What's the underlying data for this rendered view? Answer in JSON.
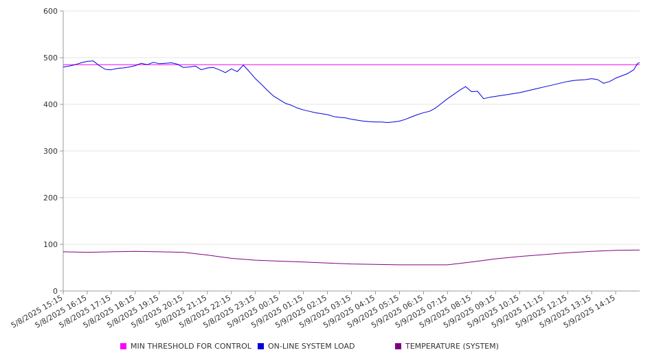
{
  "chart_data": {
    "type": "line",
    "title": "",
    "xlabel": "",
    "ylabel": "",
    "ylim": [
      0,
      600
    ],
    "yticks": [
      0,
      100,
      200,
      300,
      400,
      500,
      600
    ],
    "grid": "horizontal",
    "legend_position": "bottom",
    "x_tick_labels": [
      "5/8/2025 15:15",
      "5/8/2025 16:15",
      "5/8/2025 17:15",
      "5/8/2025 18:15",
      "5/8/2025 19:15",
      "5/8/2025 20:15",
      "5/8/2025 21:15",
      "5/8/2025 22:15",
      "5/8/2025 23:15",
      "5/9/2025 00:15",
      "5/9/2025 01:15",
      "5/9/2025 02:15",
      "5/9/2025 03:15",
      "5/9/2025 04:15",
      "5/9/2025 05:15",
      "5/9/2025 06:15",
      "5/9/2025 07:15",
      "5/9/2025 08:15",
      "5/9/2025 09:15",
      "5/9/2025 10:15",
      "5/9/2025 11:15",
      "5/9/2025 12:15",
      "5/9/2025 13:15",
      "5/9/2025 14:15"
    ],
    "x_start": "5/8/2025 15:15",
    "x_end": "5/9/2025 15:15",
    "series": [
      {
        "name": "MIN THRESHOLD FOR CONTROL",
        "color": "#ff00ff",
        "points": [
          [
            "5/8/2025 15:15",
            485
          ],
          [
            "5/9/2025 15:15",
            485
          ]
        ]
      },
      {
        "name": "ON-LINE SYSTEM LOAD",
        "color": "#0000dd",
        "points": [
          [
            "5/8/2025 15:15",
            480
          ],
          [
            "5/8/2025 15:30",
            482
          ],
          [
            "5/8/2025 15:45",
            485
          ],
          [
            "5/8/2025 16:00",
            489
          ],
          [
            "5/8/2025 16:15",
            492
          ],
          [
            "5/8/2025 16:30",
            493
          ],
          [
            "5/8/2025 16:45",
            483
          ],
          [
            "5/8/2025 17:00",
            475
          ],
          [
            "5/8/2025 17:15",
            474
          ],
          [
            "5/8/2025 17:30",
            477
          ],
          [
            "5/8/2025 17:45",
            478
          ],
          [
            "5/8/2025 18:00",
            480
          ],
          [
            "5/8/2025 18:15",
            483
          ],
          [
            "5/8/2025 18:30",
            488
          ],
          [
            "5/8/2025 18:45",
            485
          ],
          [
            "5/8/2025 19:00",
            490
          ],
          [
            "5/8/2025 19:15",
            487
          ],
          [
            "5/8/2025 19:30",
            488
          ],
          [
            "5/8/2025 19:45",
            489
          ],
          [
            "5/8/2025 20:00",
            486
          ],
          [
            "5/8/2025 20:15",
            479
          ],
          [
            "5/8/2025 20:30",
            480
          ],
          [
            "5/8/2025 20:45",
            482
          ],
          [
            "5/8/2025 21:00",
            474
          ],
          [
            "5/8/2025 21:15",
            478
          ],
          [
            "5/8/2025 21:30",
            479
          ],
          [
            "5/8/2025 21:45",
            474
          ],
          [
            "5/8/2025 22:00",
            468
          ],
          [
            "5/8/2025 22:15",
            476
          ],
          [
            "5/8/2025 22:30",
            470
          ],
          [
            "5/8/2025 22:45",
            484
          ],
          [
            "5/8/2025 23:00",
            470
          ],
          [
            "5/8/2025 23:15",
            455
          ],
          [
            "5/8/2025 23:30",
            443
          ],
          [
            "5/8/2025 23:45",
            430
          ],
          [
            "5/9/2025 00:00",
            418
          ],
          [
            "5/9/2025 00:15",
            410
          ],
          [
            "5/9/2025 00:30",
            402
          ],
          [
            "5/9/2025 00:45",
            398
          ],
          [
            "5/9/2025 01:00",
            392
          ],
          [
            "5/9/2025 01:15",
            388
          ],
          [
            "5/9/2025 01:30",
            385
          ],
          [
            "5/9/2025 01:45",
            382
          ],
          [
            "5/9/2025 02:00",
            380
          ],
          [
            "5/9/2025 02:15",
            378
          ],
          [
            "5/9/2025 02:30",
            374
          ],
          [
            "5/9/2025 02:45",
            372
          ],
          [
            "5/9/2025 03:00",
            371
          ],
          [
            "5/9/2025 03:15",
            368
          ],
          [
            "5/9/2025 03:30",
            366
          ],
          [
            "5/9/2025 03:45",
            364
          ],
          [
            "5/9/2025 04:00",
            363
          ],
          [
            "5/9/2025 04:15",
            362
          ],
          [
            "5/9/2025 04:30",
            362
          ],
          [
            "5/9/2025 04:45",
            361
          ],
          [
            "5/9/2025 05:00",
            362
          ],
          [
            "5/9/2025 05:15",
            364
          ],
          [
            "5/9/2025 05:30",
            368
          ],
          [
            "5/9/2025 05:45",
            373
          ],
          [
            "5/9/2025 06:00",
            378
          ],
          [
            "5/9/2025 06:15",
            382
          ],
          [
            "5/9/2025 06:30",
            385
          ],
          [
            "5/9/2025 06:45",
            392
          ],
          [
            "5/9/2025 07:00",
            402
          ],
          [
            "5/9/2025 07:15",
            412
          ],
          [
            "5/9/2025 07:30",
            421
          ],
          [
            "5/9/2025 07:45",
            430
          ],
          [
            "5/9/2025 08:00",
            438
          ],
          [
            "5/9/2025 08:15",
            427
          ],
          [
            "5/9/2025 08:30",
            428
          ],
          [
            "5/9/2025 08:45",
            412
          ],
          [
            "5/9/2025 09:00",
            415
          ],
          [
            "5/9/2025 09:15",
            417
          ],
          [
            "5/9/2025 09:30",
            419
          ],
          [
            "5/9/2025 09:45",
            421
          ],
          [
            "5/9/2025 10:00",
            423
          ],
          [
            "5/9/2025 10:15",
            425
          ],
          [
            "5/9/2025 10:30",
            428
          ],
          [
            "5/9/2025 10:45",
            431
          ],
          [
            "5/9/2025 11:00",
            434
          ],
          [
            "5/9/2025 11:15",
            437
          ],
          [
            "5/9/2025 11:30",
            440
          ],
          [
            "5/9/2025 11:45",
            443
          ],
          [
            "5/9/2025 12:00",
            446
          ],
          [
            "5/9/2025 12:15",
            449
          ],
          [
            "5/9/2025 12:30",
            451
          ],
          [
            "5/9/2025 12:45",
            452
          ],
          [
            "5/9/2025 13:00",
            453
          ],
          [
            "5/9/2025 13:15",
            455
          ],
          [
            "5/9/2025 13:30",
            453
          ],
          [
            "5/9/2025 13:45",
            445
          ],
          [
            "5/9/2025 14:00",
            449
          ],
          [
            "5/9/2025 14:15",
            456
          ],
          [
            "5/9/2025 14:30",
            461
          ],
          [
            "5/9/2025 14:45",
            466
          ],
          [
            "5/9/2025 15:00",
            474
          ],
          [
            "5/9/2025 15:05",
            481
          ],
          [
            "5/9/2025 15:10",
            488
          ],
          [
            "5/9/2025 15:15",
            489
          ]
        ]
      },
      {
        "name": "TEMPERATURE (SYSTEM)",
        "color": "#800080",
        "points": [
          [
            "5/8/2025 15:15",
            84
          ],
          [
            "5/8/2025 16:15",
            83
          ],
          [
            "5/8/2025 17:15",
            84
          ],
          [
            "5/8/2025 18:15",
            85
          ],
          [
            "5/8/2025 19:15",
            84
          ],
          [
            "5/8/2025 20:15",
            83
          ],
          [
            "5/8/2025 21:15",
            77
          ],
          [
            "5/8/2025 22:15",
            70
          ],
          [
            "5/8/2025 23:15",
            66
          ],
          [
            "5/9/2025 00:15",
            64
          ],
          [
            "5/9/2025 01:15",
            62
          ],
          [
            "5/9/2025 02:15",
            60
          ],
          [
            "5/9/2025 03:15",
            58
          ],
          [
            "5/9/2025 04:15",
            57
          ],
          [
            "5/9/2025 05:15",
            56
          ],
          [
            "5/9/2025 06:15",
            56
          ],
          [
            "5/9/2025 07:15",
            56
          ],
          [
            "5/9/2025 08:15",
            62
          ],
          [
            "5/9/2025 09:15",
            69
          ],
          [
            "5/9/2025 10:15",
            74
          ],
          [
            "5/9/2025 11:15",
            78
          ],
          [
            "5/9/2025 12:15",
            82
          ],
          [
            "5/9/2025 13:15",
            85
          ],
          [
            "5/9/2025 14:15",
            87
          ],
          [
            "5/9/2025 15:15",
            88
          ]
        ]
      }
    ]
  }
}
